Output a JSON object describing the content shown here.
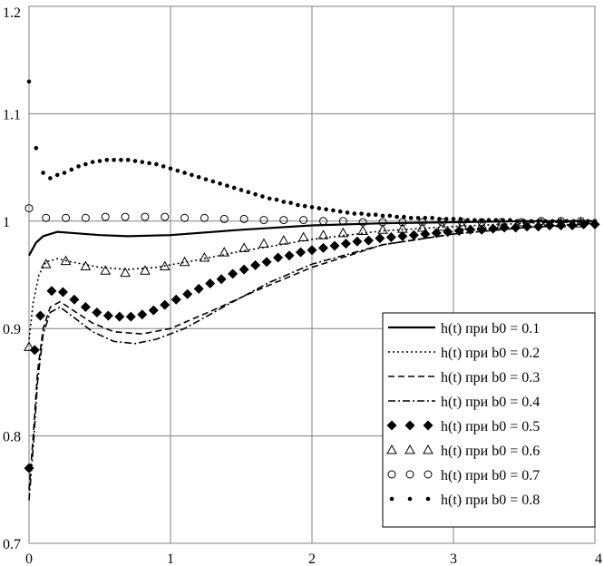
{
  "chart_data": {
    "type": "line",
    "title": "",
    "xlabel": "",
    "ylabel": "",
    "xlim": [
      0,
      4
    ],
    "ylim": [
      0.7,
      1.2
    ],
    "grid": true,
    "legend_position": "bottom-right",
    "x_ticks": [
      "0",
      "1",
      "2",
      "3",
      "4"
    ],
    "y_ticks": [
      "0.7",
      "0.8",
      "0.9",
      "1",
      "1.1",
      "1.2"
    ],
    "series": [
      {
        "name": "h(t) при b0 = 0.1",
        "style": "solid",
        "color": "#000000",
        "x": [
          0,
          0.05,
          0.1,
          0.2,
          0.3,
          0.5,
          0.7,
          1.0,
          1.5,
          2.0,
          2.5,
          3.0,
          3.5,
          4.0
        ],
        "y": [
          0.968,
          0.98,
          0.986,
          0.99,
          0.989,
          0.987,
          0.986,
          0.987,
          0.992,
          0.996,
          0.998,
          0.999,
          1.0,
          1.0
        ]
      },
      {
        "name": "h(t) при b0 = 0.2",
        "style": "dotted",
        "color": "#000000",
        "x": [
          0,
          0.03,
          0.07,
          0.12,
          0.2,
          0.3,
          0.5,
          0.7,
          0.9,
          1.2,
          1.5,
          2.0,
          2.5,
          3.0,
          3.5,
          4.0
        ],
        "y": [
          0.89,
          0.925,
          0.95,
          0.962,
          0.965,
          0.962,
          0.957,
          0.955,
          0.957,
          0.964,
          0.972,
          0.983,
          0.991,
          0.995,
          0.998,
          1.0
        ]
      },
      {
        "name": "h(t) при b0 = 0.3",
        "style": "dashed",
        "color": "#000000",
        "x": [
          0,
          0.03,
          0.06,
          0.1,
          0.15,
          0.22,
          0.3,
          0.45,
          0.6,
          0.8,
          1.0,
          1.3,
          1.6,
          2.0,
          2.5,
          3.0,
          3.5,
          4.0
        ],
        "y": [
          0.75,
          0.8,
          0.86,
          0.9,
          0.92,
          0.925,
          0.918,
          0.905,
          0.897,
          0.895,
          0.9,
          0.917,
          0.935,
          0.957,
          0.978,
          0.988,
          0.994,
          0.998
        ]
      },
      {
        "name": "h(t) при b0 = 0.4",
        "style": "dashdot",
        "color": "#000000",
        "x": [
          0,
          0.03,
          0.06,
          0.1,
          0.15,
          0.22,
          0.3,
          0.45,
          0.6,
          0.75,
          0.9,
          1.1,
          1.4,
          1.7,
          2.0,
          2.5,
          3.0,
          3.5,
          4.0
        ],
        "y": [
          0.74,
          0.79,
          0.85,
          0.895,
          0.915,
          0.92,
          0.912,
          0.897,
          0.888,
          0.886,
          0.89,
          0.9,
          0.922,
          0.943,
          0.96,
          0.978,
          0.988,
          0.994,
          0.998
        ]
      },
      {
        "name": "h(t) при b0 = 0.5",
        "style": "diamond",
        "color": "#000000",
        "x": [
          0,
          0.04,
          0.08,
          0.16,
          0.24,
          0.32,
          0.4,
          0.48,
          0.56,
          0.64,
          0.72,
          0.8,
          0.88,
          0.96,
          1.04,
          1.12,
          1.2,
          1.28,
          1.36,
          1.44,
          1.52,
          1.6,
          1.68,
          1.76,
          1.84,
          1.92,
          2.0,
          2.08,
          2.16,
          2.24,
          2.32,
          2.4,
          2.48,
          2.56,
          2.64,
          2.72,
          2.8,
          2.88,
          2.96,
          3.04,
          3.12,
          3.2,
          3.28,
          3.36,
          3.44,
          3.52,
          3.6,
          3.68,
          3.76,
          3.84,
          3.92,
          4.0
        ],
        "y": [
          0.77,
          0.88,
          0.912,
          0.935,
          0.934,
          0.927,
          0.92,
          0.915,
          0.912,
          0.911,
          0.911,
          0.913,
          0.917,
          0.922,
          0.927,
          0.932,
          0.937,
          0.942,
          0.946,
          0.951,
          0.955,
          0.959,
          0.962,
          0.966,
          0.968,
          0.971,
          0.973,
          0.975,
          0.977,
          0.979,
          0.981,
          0.982,
          0.984,
          0.985,
          0.986,
          0.987,
          0.988,
          0.989,
          0.99,
          0.991,
          0.992,
          0.992,
          0.993,
          0.994,
          0.994,
          0.995,
          0.995,
          0.996,
          0.996,
          0.996,
          0.997,
          0.997
        ]
      },
      {
        "name": "h(t) при b0 = 0.6",
        "style": "triangle",
        "color": "#000000",
        "x": [
          0,
          0.12,
          0.26,
          0.4,
          0.54,
          0.68,
          0.82,
          0.96,
          1.1,
          1.24,
          1.38,
          1.52,
          1.66,
          1.8,
          1.94,
          2.08,
          2.22,
          2.36,
          2.5,
          2.64,
          2.78,
          2.92,
          3.06,
          3.2,
          3.34,
          3.48,
          3.62,
          3.76,
          3.9
        ],
        "y": [
          0.883,
          0.96,
          0.963,
          0.958,
          0.954,
          0.952,
          0.954,
          0.958,
          0.962,
          0.966,
          0.971,
          0.975,
          0.979,
          0.982,
          0.985,
          0.987,
          0.989,
          0.991,
          0.992,
          0.993,
          0.994,
          0.995,
          0.996,
          0.996,
          0.997,
          0.997,
          0.998,
          0.998,
          0.998
        ]
      },
      {
        "name": "h(t) при b0 = 0.7",
        "style": "circle",
        "color": "#000000",
        "x": [
          0,
          0.12,
          0.26,
          0.4,
          0.54,
          0.68,
          0.82,
          0.96,
          1.1,
          1.24,
          1.38,
          1.52,
          1.66,
          1.8,
          1.94,
          2.08,
          2.22,
          2.36,
          2.5,
          2.64,
          2.78,
          2.92,
          3.06,
          3.2,
          3.34,
          3.48,
          3.62,
          3.76,
          3.9
        ],
        "y": [
          1.012,
          1.003,
          1.003,
          1.003,
          1.004,
          1.004,
          1.004,
          1.004,
          1.003,
          1.003,
          1.002,
          1.002,
          1.001,
          1.001,
          1.001,
          1.0,
          1.0,
          0.999,
          0.999,
          0.999,
          0.999,
          0.999,
          0.999,
          0.999,
          0.999,
          0.999,
          1.0,
          1.0,
          1.0
        ]
      },
      {
        "name": "h(t) при b0 = 0.8",
        "style": "dot",
        "color": "#000000",
        "x": [
          0,
          0.05,
          0.1,
          0.15,
          0.2,
          0.25,
          0.3,
          0.35,
          0.4,
          0.45,
          0.5,
          0.55,
          0.6,
          0.65,
          0.7,
          0.75,
          0.8,
          0.85,
          0.9,
          0.95,
          1.0,
          1.05,
          1.1,
          1.15,
          1.2,
          1.25,
          1.3,
          1.35,
          1.4,
          1.45,
          1.5,
          1.55,
          1.6,
          1.65,
          1.7,
          1.75,
          1.8,
          1.85,
          1.9,
          1.95,
          2.0,
          2.05,
          2.1,
          2.15,
          2.2,
          2.25,
          2.3,
          2.35,
          2.4,
          2.45,
          2.5,
          2.55,
          2.6,
          2.65,
          2.7,
          2.75,
          2.8,
          2.85,
          2.9,
          2.95,
          3.0,
          3.05,
          3.1,
          3.15,
          3.2,
          3.25,
          3.3,
          3.35,
          3.4,
          3.45,
          3.5,
          3.55,
          3.6,
          3.65,
          3.7,
          3.75,
          3.8,
          3.85,
          3.9,
          3.95,
          4.0
        ],
        "y": [
          1.13,
          1.068,
          1.045,
          1.04,
          1.043,
          1.045,
          1.048,
          1.051,
          1.053,
          1.055,
          1.056,
          1.057,
          1.057,
          1.057,
          1.057,
          1.056,
          1.055,
          1.054,
          1.053,
          1.051,
          1.049,
          1.047,
          1.045,
          1.043,
          1.041,
          1.039,
          1.037,
          1.035,
          1.033,
          1.031,
          1.029,
          1.027,
          1.025,
          1.023,
          1.021,
          1.02,
          1.018,
          1.017,
          1.015,
          1.014,
          1.013,
          1.012,
          1.011,
          1.01,
          1.009,
          1.008,
          1.007,
          1.007,
          1.006,
          1.006,
          1.005,
          1.005,
          1.004,
          1.004,
          1.003,
          1.003,
          1.003,
          1.003,
          1.002,
          1.002,
          1.002,
          1.002,
          1.001,
          1.001,
          1.001,
          1.001,
          1.001,
          1.001,
          1.001,
          1.0,
          1.0,
          1.0,
          1.0,
          1.0,
          1.0,
          1.0,
          1.0,
          1.0,
          1.0,
          1.0,
          1.0
        ]
      }
    ]
  }
}
